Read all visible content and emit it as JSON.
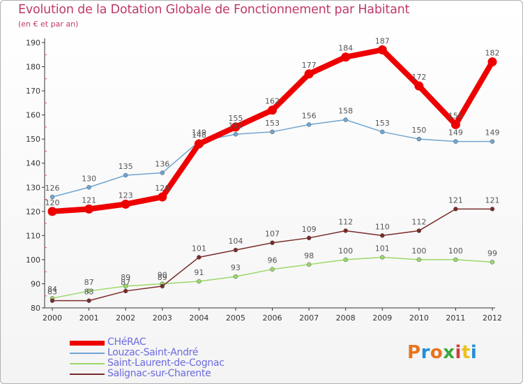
{
  "header": {
    "title": "Evolution de la Dotation Globale de Fonctionnement par Habitant",
    "subtitle": "(en € et par an)"
  },
  "logo": {
    "text": "Proxiti",
    "letters": [
      "P",
      "r",
      "o",
      "x",
      "i",
      "t",
      "i"
    ],
    "colors": [
      "#e8741f",
      "#1f8fd6",
      "#e8741f",
      "#3aa83a",
      "#d63a3a",
      "#e8c21f",
      "#1f8fd6"
    ]
  },
  "chart_data": {
    "type": "line",
    "title": "Evolution de la Dotation Globale de Fonctionnement par Habitant",
    "subtitle": "(en € et par an)",
    "xlabel": "",
    "ylabel": "",
    "x": [
      "2000",
      "2001",
      "2002",
      "2003",
      "2004",
      "2005",
      "2006",
      "2007",
      "2008",
      "2009",
      "2010",
      "2011",
      "2012"
    ],
    "ylim": [
      80,
      190
    ],
    "yticks": [
      80,
      90,
      100,
      110,
      120,
      130,
      140,
      150,
      160,
      170,
      180,
      190
    ],
    "grid": false,
    "legend_position": "bottom-left",
    "series": [
      {
        "name": "CHéRAC",
        "color": "#ee0000",
        "values": [
          120,
          121,
          123,
          126,
          148,
          155,
          162,
          177,
          184,
          187,
          172,
          156,
          182
        ],
        "labels": [
          "120",
          "121",
          "123",
          "126",
          "148",
          "155",
          "162",
          "177",
          "184",
          "187",
          "172",
          "156",
          "182"
        ]
      },
      {
        "name": "Louzac-Saint-André",
        "color": "#6fa5d2",
        "values": [
          126,
          130,
          135,
          136,
          149,
          152,
          153,
          156,
          158,
          153,
          150,
          149,
          149
        ],
        "labels": [
          "126",
          "130",
          "135",
          "136",
          "149",
          "152",
          "153",
          "156",
          "158",
          "153",
          "150",
          "149",
          "149"
        ]
      },
      {
        "name": "Saint-Laurent-de-Cognac",
        "color": "#9ad96a",
        "values": [
          84,
          87,
          89,
          90,
          91,
          93,
          96,
          98,
          100,
          101,
          100,
          100,
          99
        ],
        "labels": [
          "84",
          "87",
          "89",
          "90",
          "91",
          "93",
          "96",
          "98",
          "100",
          "101",
          "100",
          "100",
          "99"
        ]
      },
      {
        "name": "Salignac-sur-Charente",
        "color": "#7a2a2a",
        "values": [
          83,
          83,
          87,
          89,
          101,
          104,
          107,
          109,
          112,
          110,
          112,
          121,
          121
        ],
        "labels": [
          "83",
          "83",
          "87",
          "89",
          "101",
          "104",
          "107",
          "109",
          "112",
          "110",
          "112",
          "121",
          "121"
        ]
      }
    ]
  }
}
